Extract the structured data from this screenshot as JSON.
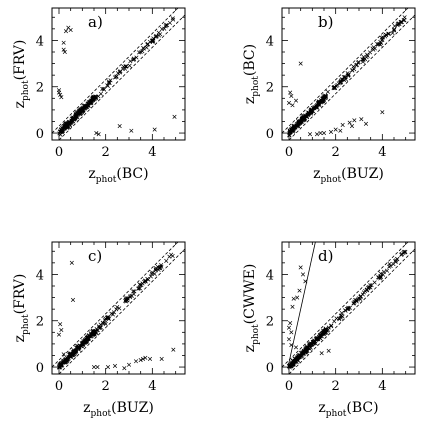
{
  "chart_data": [
    {
      "type": "scatter",
      "panel_label": "a)",
      "xlabel": {
        "main": "z",
        "sub": "phot",
        "tail": "(BC)"
      },
      "ylabel": {
        "main": "z",
        "sub": "phot",
        "tail": "(FRV)"
      },
      "xlim": [
        -0.3,
        5.4
      ],
      "ylim": [
        -0.3,
        5.4
      ],
      "xticks": [
        "0",
        "2",
        "4"
      ],
      "yticks": [
        "0",
        "2",
        "4"
      ],
      "xtick_values": [
        0,
        2,
        4
      ],
      "ytick_values": [
        0,
        2,
        4
      ],
      "reference_lines": [
        {
          "style": "dashed",
          "offset": 0.3
        },
        {
          "style": "dashed",
          "offset": -0.3
        }
      ],
      "outliers": [
        [
          0.3,
          4.4
        ],
        [
          0.4,
          4.55
        ],
        [
          0.5,
          4.45
        ],
        [
          0.2,
          3.9
        ],
        [
          0.2,
          3.6
        ],
        [
          0.25,
          3.5
        ],
        [
          0.0,
          1.85
        ],
        [
          0.05,
          1.65
        ],
        [
          0.1,
          1.55
        ],
        [
          0.0,
          1.75
        ],
        [
          1.6,
          0.0
        ],
        [
          1.7,
          -0.05
        ],
        [
          2.6,
          0.3
        ],
        [
          3.1,
          0.1
        ],
        [
          4.1,
          0.15
        ],
        [
          4.95,
          0.7
        ],
        [
          0.75,
          0.9
        ]
      ]
    },
    {
      "type": "scatter",
      "panel_label": "b)",
      "xlabel": {
        "main": "z",
        "sub": "phot",
        "tail": "(BUZ)"
      },
      "ylabel": {
        "main": "z",
        "sub": "phot",
        "tail": "(BC)"
      },
      "xlim": [
        -0.3,
        5.4
      ],
      "ylim": [
        -0.3,
        5.4
      ],
      "xticks": [
        "0",
        "2",
        "4"
      ],
      "yticks": [
        "0",
        "2",
        "4"
      ],
      "xtick_values": [
        0,
        2,
        4
      ],
      "ytick_values": [
        0,
        2,
        4
      ],
      "reference_lines": [
        {
          "style": "dashed",
          "offset": 0.3
        },
        {
          "style": "dashed",
          "offset": -0.3
        }
      ],
      "outliers": [
        [
          0.5,
          3.0
        ],
        [
          0.05,
          1.75
        ],
        [
          0.1,
          1.6
        ],
        [
          0.0,
          1.3
        ],
        [
          0.15,
          1.2
        ],
        [
          0.3,
          1.4
        ],
        [
          0.9,
          -0.05
        ],
        [
          1.2,
          -0.05
        ],
        [
          1.5,
          0.0
        ],
        [
          1.8,
          0.05
        ],
        [
          2.0,
          0.15
        ],
        [
          2.3,
          0.35
        ],
        [
          2.6,
          0.45
        ],
        [
          2.7,
          0.3
        ],
        [
          2.8,
          0.55
        ],
        [
          3.1,
          0.6
        ],
        [
          3.3,
          0.4
        ],
        [
          4.0,
          0.9
        ],
        [
          2.2,
          0.1
        ],
        [
          1.35,
          0.0
        ]
      ]
    },
    {
      "type": "scatter",
      "panel_label": "c)",
      "xlabel": {
        "main": "z",
        "sub": "phot",
        "tail": "(BUZ)"
      },
      "ylabel": {
        "main": "z",
        "sub": "phot",
        "tail": "(FRV)"
      },
      "xlim": [
        -0.3,
        5.4
      ],
      "ylim": [
        -0.3,
        5.4
      ],
      "xticks": [
        "0",
        "2",
        "4"
      ],
      "yticks": [
        "0",
        "2",
        "4"
      ],
      "xtick_values": [
        0,
        2,
        4
      ],
      "ytick_values": [
        0,
        2,
        4
      ],
      "reference_lines": [
        {
          "style": "dashed",
          "offset": 0.3
        },
        {
          "style": "dashed",
          "offset": -0.3
        }
      ],
      "outliers": [
        [
          0.55,
          4.5
        ],
        [
          0.6,
          2.9
        ],
        [
          0.05,
          1.85
        ],
        [
          0.1,
          1.6
        ],
        [
          0.0,
          1.4
        ],
        [
          0.2,
          0.55
        ],
        [
          0.4,
          0.45
        ],
        [
          1.5,
          0.0
        ],
        [
          1.65,
          0.0
        ],
        [
          2.1,
          0.0
        ],
        [
          2.4,
          0.05
        ],
        [
          3.0,
          0.1
        ],
        [
          3.3,
          0.25
        ],
        [
          3.5,
          0.3
        ],
        [
          3.6,
          0.35
        ],
        [
          3.7,
          0.4
        ],
        [
          3.9,
          0.35
        ],
        [
          4.4,
          0.35
        ],
        [
          4.9,
          0.75
        ],
        [
          2.8,
          -0.05
        ]
      ]
    },
    {
      "type": "scatter",
      "panel_label": "d)",
      "xlabel": {
        "main": "z",
        "sub": "phot",
        "tail": "(BC)"
      },
      "ylabel": {
        "main": "z",
        "sub": "phot",
        "tail": "(CWWE)"
      },
      "xlim": [
        -0.3,
        5.4
      ],
      "ylim": [
        -0.3,
        5.4
      ],
      "xticks": [
        "0",
        "2",
        "4"
      ],
      "yticks": [
        "0",
        "2",
        "4"
      ],
      "xtick_values": [
        0,
        2,
        4
      ],
      "ytick_values": [
        0,
        2,
        4
      ],
      "reference_lines": [
        {
          "style": "dashed",
          "offset": 0.3
        },
        {
          "style": "dashed",
          "offset": -0.3
        },
        {
          "style": "solid",
          "slope": 4.6,
          "intercept": 0.2
        }
      ],
      "outliers": [
        [
          0.5,
          4.3
        ],
        [
          0.6,
          4.0
        ],
        [
          0.7,
          3.7
        ],
        [
          0.45,
          3.3
        ],
        [
          0.35,
          3.0
        ],
        [
          0.2,
          2.95
        ],
        [
          0.15,
          2.6
        ],
        [
          0.05,
          1.9
        ],
        [
          0.0,
          1.7
        ],
        [
          0.1,
          1.5
        ],
        [
          0.0,
          1.2
        ],
        [
          0.1,
          0.95
        ],
        [
          0.3,
          0.85
        ],
        [
          1.4,
          0.6
        ],
        [
          1.7,
          0.7
        ]
      ]
    }
  ]
}
